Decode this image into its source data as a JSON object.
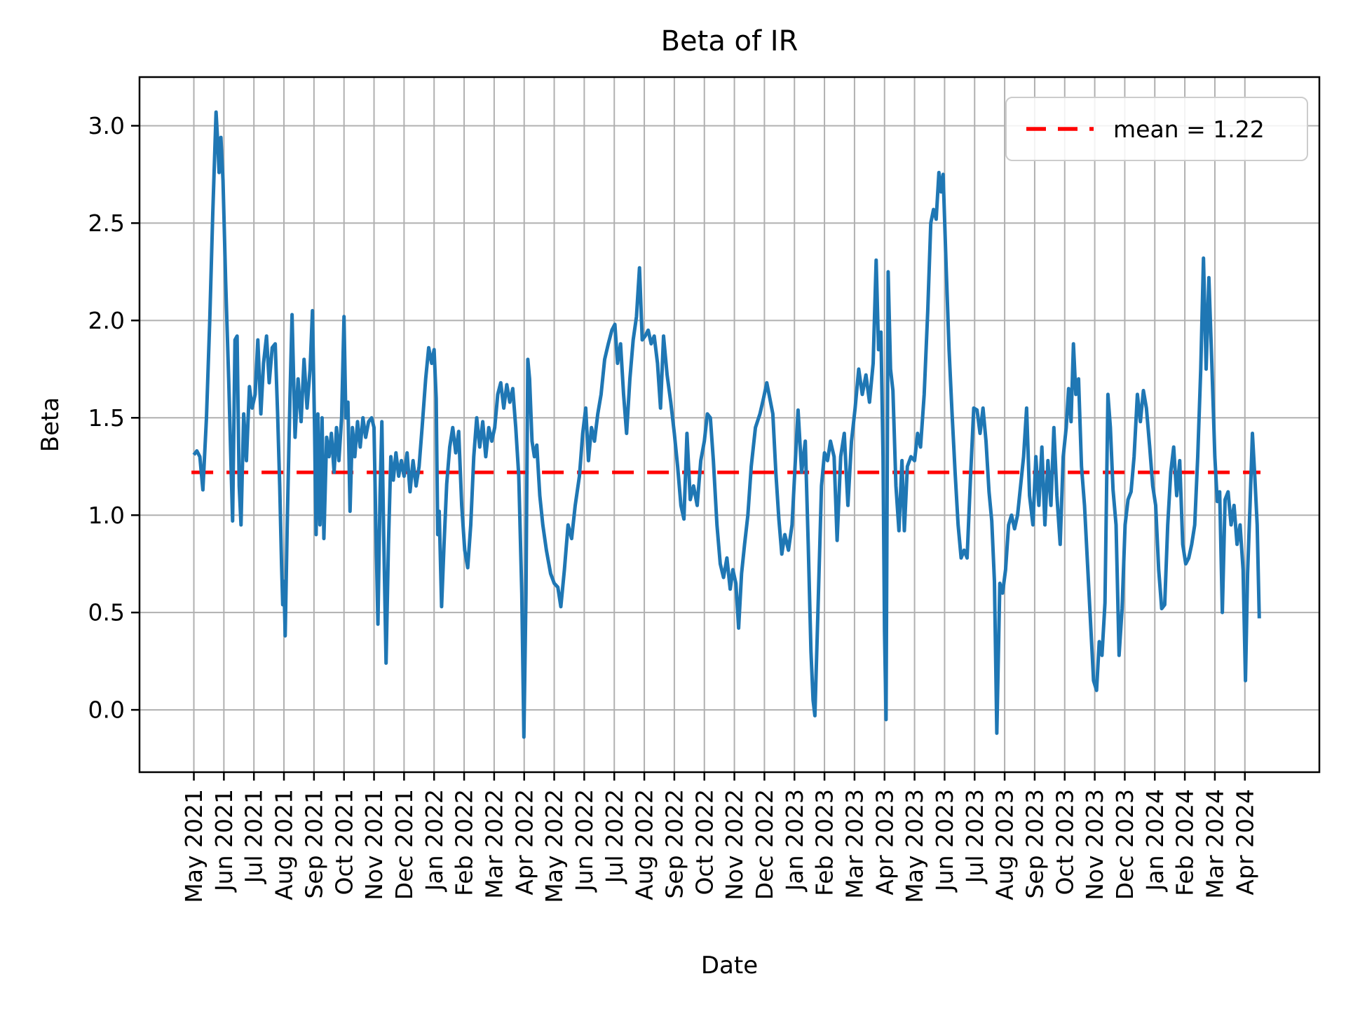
{
  "figure": {
    "title": "Beta of IR",
    "xlabel": "Date",
    "ylabel": "Beta"
  },
  "legend": {
    "label": "mean = 1.22"
  },
  "colors": {
    "series": "#1f77b4",
    "mean_line": "#ff0000",
    "grid": "#b0b0b0",
    "spine": "#000000",
    "text": "#000000",
    "legend_border": "#cccccc"
  },
  "chart_data": {
    "type": "line",
    "title": "Beta of IR",
    "xlabel": "Date",
    "ylabel": "Beta",
    "grid": true,
    "legend_position": "upper right",
    "mean": 1.22,
    "x_unit": "months since 2021-05-01 (0 = May 2021 tick, daily rolling beta series)",
    "xlim_months": [
      -1.81,
      37.48
    ],
    "ylim": [
      -0.32,
      3.25
    ],
    "y_ticks": [
      0.0,
      0.5,
      1.0,
      1.5,
      2.0,
      2.5,
      3.0
    ],
    "y_tick_labels": [
      "0.0",
      "0.5",
      "1.0",
      "1.5",
      "2.0",
      "2.5",
      "3.0"
    ],
    "x_tick_labels": [
      "May 2021",
      "Jun 2021",
      "Jul 2021",
      "Aug 2021",
      "Sep 2021",
      "Oct 2021",
      "Nov 2021",
      "Dec 2021",
      "Jan 2022",
      "Feb 2022",
      "Mar 2022",
      "Apr 2022",
      "May 2022",
      "Jun 2022",
      "Jul 2022",
      "Aug 2022",
      "Sep 2022",
      "Oct 2022",
      "Nov 2022",
      "Dec 2022",
      "Jan 2023",
      "Feb 2023",
      "Mar 2023",
      "Apr 2023",
      "May 2023",
      "Jun 2023",
      "Jul 2023",
      "Aug 2023",
      "Sep 2023",
      "Oct 2023",
      "Nov 2023",
      "Dec 2023",
      "Jan 2024",
      "Feb 2024",
      "Mar 2024",
      "Apr 2024"
    ],
    "mean_line": {
      "value": 1.22,
      "x_span_months": [
        -0.08,
        35.52
      ],
      "dash": [
        31,
        19
      ]
    },
    "series": [
      {
        "name": "Beta of IR",
        "x": [
          0.0,
          0.1,
          0.2,
          0.3,
          0.42,
          0.53,
          0.63,
          0.74,
          0.8,
          0.84,
          0.9,
          0.97,
          1.06,
          1.16,
          1.24,
          1.29,
          1.37,
          1.44,
          1.51,
          1.57,
          1.66,
          1.75,
          1.85,
          1.94,
          2.04,
          2.13,
          2.23,
          2.32,
          2.42,
          2.51,
          2.61,
          2.71,
          2.79,
          2.86,
          2.92,
          2.96,
          3.0,
          3.04,
          3.11,
          3.2,
          3.27,
          3.37,
          3.47,
          3.57,
          3.67,
          3.77,
          3.87,
          3.95,
          4.02,
          4.07,
          4.13,
          4.2,
          4.27,
          4.33,
          4.42,
          4.5,
          4.58,
          4.67,
          4.75,
          4.83,
          4.92,
          5.0,
          5.06,
          5.13,
          5.2,
          5.28,
          5.36,
          5.45,
          5.54,
          5.63,
          5.72,
          5.82,
          5.92,
          6.0,
          6.06,
          6.13,
          6.2,
          6.26,
          6.32,
          6.4,
          6.48,
          6.56,
          6.64,
          6.73,
          6.82,
          6.91,
          7.0,
          7.1,
          7.2,
          7.3,
          7.4,
          7.5,
          7.6,
          7.72,
          7.82,
          7.92,
          8.0,
          8.07,
          8.12,
          8.17,
          8.25,
          8.33,
          8.42,
          8.52,
          8.62,
          8.72,
          8.82,
          8.92,
          9.02,
          9.12,
          9.22,
          9.32,
          9.42,
          9.52,
          9.62,
          9.72,
          9.82,
          9.92,
          10.02,
          10.12,
          10.22,
          10.32,
          10.42,
          10.52,
          10.62,
          10.72,
          10.82,
          10.92,
          10.99,
          11.06,
          11.12,
          11.18,
          11.26,
          11.34,
          11.42,
          11.52,
          11.62,
          11.74,
          11.88,
          12.0,
          12.12,
          12.22,
          12.34,
          12.46,
          12.58,
          12.7,
          12.84,
          12.95,
          13.05,
          13.14,
          13.24,
          13.34,
          13.45,
          13.56,
          13.68,
          13.8,
          13.92,
          14.02,
          14.11,
          14.21,
          14.31,
          14.41,
          14.52,
          14.63,
          14.74,
          14.84,
          14.93,
          15.03,
          15.13,
          15.23,
          15.33,
          15.44,
          15.54,
          15.64,
          15.76,
          15.88,
          16.0,
          16.11,
          16.22,
          16.32,
          16.42,
          16.53,
          16.64,
          16.76,
          16.88,
          17.0,
          17.1,
          17.2,
          17.3,
          17.42,
          17.53,
          17.64,
          17.75,
          17.86,
          17.95,
          18.05,
          18.14,
          18.24,
          18.34,
          18.45,
          18.56,
          18.7,
          18.85,
          18.97,
          19.08,
          19.18,
          19.28,
          19.38,
          19.48,
          19.58,
          19.68,
          19.8,
          19.92,
          20.02,
          20.12,
          20.24,
          20.36,
          20.46,
          20.55,
          20.62,
          20.68,
          20.78,
          20.9,
          21.0,
          21.1,
          21.2,
          21.32,
          21.42,
          21.54,
          21.66,
          21.78,
          21.9,
          22.02,
          22.14,
          22.26,
          22.38,
          22.5,
          22.62,
          22.72,
          22.8,
          22.88,
          22.95,
          23.0,
          23.05,
          23.12,
          23.2,
          23.28,
          23.38,
          23.48,
          23.58,
          23.66,
          23.76,
          23.88,
          24.0,
          24.1,
          24.2,
          24.32,
          24.44,
          24.54,
          24.63,
          24.72,
          24.81,
          24.88,
          24.95,
          25.05,
          25.15,
          25.25,
          25.35,
          25.45,
          25.55,
          25.65,
          25.75,
          25.87,
          25.97,
          26.08,
          26.18,
          26.28,
          26.38,
          26.48,
          26.57,
          26.66,
          26.74,
          26.84,
          26.93,
          27.03,
          27.13,
          27.23,
          27.33,
          27.43,
          27.53,
          27.63,
          27.73,
          27.83,
          27.94,
          28.04,
          28.14,
          28.24,
          28.34,
          28.44,
          28.54,
          28.64,
          28.74,
          28.85,
          28.95,
          29.05,
          29.13,
          29.21,
          29.29,
          29.37,
          29.46,
          29.56,
          29.66,
          29.76,
          29.86,
          29.96,
          30.06,
          30.15,
          30.24,
          30.34,
          30.44,
          30.52,
          30.61,
          30.71,
          30.81,
          30.91,
          31.01,
          31.11,
          31.21,
          31.31,
          31.42,
          31.52,
          31.62,
          31.72,
          31.83,
          31.93,
          32.03,
          32.13,
          32.23,
          32.33,
          32.43,
          32.53,
          32.63,
          32.73,
          32.83,
          32.93,
          33.03,
          33.13,
          33.23,
          33.33,
          33.43,
          33.53,
          33.62,
          33.71,
          33.8,
          33.9,
          34.0,
          34.08,
          34.16,
          34.25,
          34.34,
          34.44,
          34.54,
          34.64,
          34.74,
          34.84,
          34.94,
          35.02,
          35.09,
          35.17,
          35.25,
          35.33,
          35.41,
          35.48
        ],
        "y": [
          1.31,
          1.33,
          1.3,
          1.13,
          1.5,
          2.0,
          2.55,
          3.07,
          2.9,
          2.76,
          2.94,
          2.72,
          2.2,
          1.7,
          1.25,
          0.97,
          1.9,
          1.92,
          1.15,
          0.95,
          1.52,
          1.28,
          1.66,
          1.55,
          1.62,
          1.9,
          1.52,
          1.78,
          1.92,
          1.68,
          1.86,
          1.88,
          1.52,
          1.15,
          0.75,
          0.54,
          0.66,
          0.38,
          0.95,
          1.6,
          2.03,
          1.4,
          1.7,
          1.48,
          1.8,
          1.55,
          1.75,
          2.05,
          1.45,
          0.9,
          1.52,
          0.95,
          1.5,
          0.88,
          1.4,
          1.3,
          1.42,
          1.22,
          1.45,
          1.28,
          1.5,
          2.02,
          1.5,
          1.58,
          1.02,
          1.45,
          1.3,
          1.48,
          1.35,
          1.5,
          1.4,
          1.48,
          1.5,
          1.45,
          0.95,
          0.44,
          1.1,
          1.48,
          0.9,
          0.24,
          0.85,
          1.3,
          1.18,
          1.32,
          1.2,
          1.28,
          1.2,
          1.32,
          1.12,
          1.28,
          1.15,
          1.25,
          1.45,
          1.7,
          1.86,
          1.78,
          1.85,
          1.6,
          0.9,
          1.02,
          0.53,
          0.85,
          1.16,
          1.35,
          1.45,
          1.32,
          1.43,
          1.05,
          0.82,
          0.73,
          0.95,
          1.3,
          1.5,
          1.35,
          1.48,
          1.3,
          1.45,
          1.38,
          1.45,
          1.62,
          1.68,
          1.55,
          1.67,
          1.58,
          1.65,
          1.45,
          1.2,
          0.6,
          -0.14,
          0.6,
          1.8,
          1.7,
          1.38,
          1.3,
          1.36,
          1.1,
          0.95,
          0.82,
          0.7,
          0.65,
          0.63,
          0.53,
          0.72,
          0.95,
          0.88,
          1.05,
          1.2,
          1.42,
          1.55,
          1.28,
          1.45,
          1.38,
          1.52,
          1.62,
          1.8,
          1.88,
          1.95,
          1.98,
          1.78,
          1.88,
          1.62,
          1.42,
          1.7,
          1.9,
          2.02,
          2.27,
          1.9,
          1.92,
          1.95,
          1.88,
          1.92,
          1.78,
          1.55,
          1.92,
          1.72,
          1.58,
          1.42,
          1.25,
          1.05,
          0.98,
          1.42,
          1.08,
          1.15,
          1.05,
          1.28,
          1.38,
          1.52,
          1.5,
          1.28,
          0.95,
          0.75,
          0.68,
          0.78,
          0.62,
          0.72,
          0.65,
          0.42,
          0.7,
          0.85,
          1.0,
          1.25,
          1.45,
          1.52,
          1.6,
          1.68,
          1.6,
          1.52,
          1.22,
          0.98,
          0.8,
          0.9,
          0.82,
          0.95,
          1.25,
          1.54,
          1.22,
          1.38,
          0.85,
          0.3,
          0.05,
          -0.03,
          0.5,
          1.15,
          1.32,
          1.28,
          1.38,
          1.3,
          0.87,
          1.3,
          1.42,
          1.05,
          1.38,
          1.55,
          1.75,
          1.62,
          1.72,
          1.58,
          1.78,
          2.31,
          1.85,
          1.94,
          1.3,
          0.41,
          -0.05,
          2.25,
          1.75,
          1.64,
          1.15,
          0.92,
          1.28,
          0.92,
          1.25,
          1.3,
          1.28,
          1.42,
          1.35,
          1.62,
          2.05,
          2.5,
          2.57,
          2.52,
          2.76,
          2.66,
          2.75,
          2.28,
          1.85,
          1.52,
          1.22,
          0.95,
          0.78,
          0.82,
          0.78,
          1.22,
          1.55,
          1.54,
          1.42,
          1.55,
          1.38,
          1.12,
          0.97,
          0.66,
          -0.12,
          0.65,
          0.6,
          0.72,
          0.95,
          1.0,
          0.93,
          1.0,
          1.15,
          1.3,
          1.55,
          1.1,
          0.95,
          1.3,
          1.05,
          1.35,
          0.95,
          1.28,
          1.05,
          1.45,
          1.1,
          0.85,
          1.3,
          1.45,
          1.65,
          1.48,
          1.88,
          1.62,
          1.7,
          1.25,
          1.05,
          0.75,
          0.45,
          0.15,
          0.1,
          0.35,
          0.28,
          0.55,
          1.62,
          1.45,
          1.13,
          0.95,
          0.28,
          0.52,
          0.95,
          1.08,
          1.12,
          1.3,
          1.62,
          1.48,
          1.64,
          1.55,
          1.35,
          1.15,
          1.05,
          0.72,
          0.52,
          0.54,
          0.95,
          1.22,
          1.35,
          1.1,
          1.28,
          0.85,
          0.75,
          0.78,
          0.85,
          0.95,
          1.3,
          1.75,
          2.32,
          1.75,
          2.22,
          1.78,
          1.3,
          1.07,
          1.12,
          0.5,
          1.08,
          1.12,
          0.95,
          1.05,
          0.85,
          0.95,
          0.72,
          0.15,
          0.7,
          1.05,
          1.42,
          1.2,
          0.95,
          0.47
        ]
      }
    ]
  }
}
